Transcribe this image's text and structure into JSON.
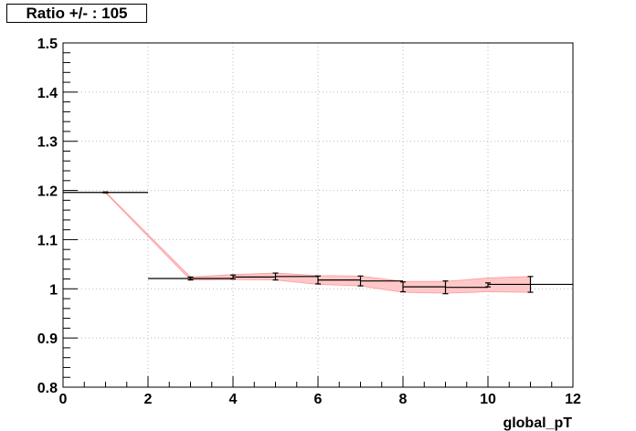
{
  "chart_data": {
    "type": "line",
    "title": "Ratio +/- : 105",
    "xlabel": "global_pT",
    "ylabel": "",
    "xlim": [
      0,
      12
    ],
    "ylim": [
      0.8,
      1.5
    ],
    "x_ticks": [
      "0",
      "2",
      "4",
      "6",
      "8",
      "10",
      "12"
    ],
    "y_ticks": [
      "0.8",
      "0.9",
      "1",
      "1.1",
      "1.2",
      "1.3",
      "1.4",
      "1.5"
    ],
    "grid": true,
    "band_color": "#ffc8c8",
    "band_edge_color": "#ff9999",
    "points": [
      {
        "x": 1,
        "xlow": 0,
        "xhigh": 2,
        "y": 1.196,
        "yerr": 0.001,
        "band": 0.001
      },
      {
        "x": 3,
        "xlow": 2,
        "xhigh": 4,
        "y": 1.021,
        "yerr": 0.003,
        "band": 0.003
      },
      {
        "x": 4,
        "xlow": 4,
        "xhigh": 5,
        "y": 1.024,
        "yerr": 0.004,
        "band": 0.005
      },
      {
        "x": 5,
        "xlow": 5,
        "xhigh": 6,
        "y": 1.025,
        "yerr": 0.007,
        "band": 0.007
      },
      {
        "x": 6,
        "xlow": 6,
        "xhigh": 7,
        "y": 1.018,
        "yerr": 0.008,
        "band": 0.009
      },
      {
        "x": 7,
        "xlow": 7,
        "xhigh": 8,
        "y": 1.016,
        "yerr": 0.01,
        "band": 0.01
      },
      {
        "x": 8,
        "xlow": 8,
        "xhigh": 9,
        "y": 1.004,
        "yerr": 0.01,
        "band": 0.011
      },
      {
        "x": 9,
        "xlow": 9,
        "xhigh": 10,
        "y": 1.003,
        "yerr": 0.013,
        "band": 0.012
      },
      {
        "x": 10,
        "xlow": 10,
        "xhigh": 10,
        "y": 1.008,
        "yerr": 0.004,
        "band": 0.014
      },
      {
        "x": 11,
        "xlow": 10,
        "xhigh": 12,
        "y": 1.009,
        "yerr": 0.016,
        "band": 0.016
      }
    ]
  }
}
